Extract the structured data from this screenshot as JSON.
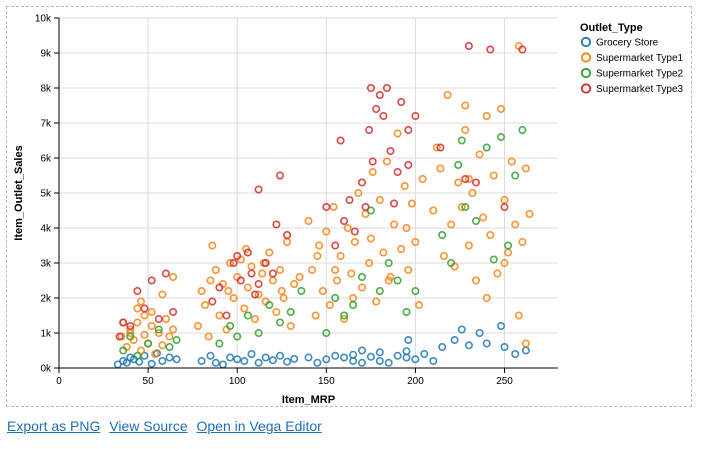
{
  "chart_data": {
    "type": "scatter",
    "xlabel": "Item_MRP",
    "ylabel": "Item_Outlet_Sales",
    "xlim": [
      0,
      280
    ],
    "ylim": [
      0,
      10000
    ],
    "x_ticks": [
      0,
      50,
      100,
      150,
      200,
      250
    ],
    "x_tick_labels": [
      "0",
      "50",
      "100",
      "150",
      "200",
      "250"
    ],
    "y_ticks": [
      0,
      1000,
      2000,
      3000,
      4000,
      5000,
      6000,
      7000,
      8000,
      9000,
      10000
    ],
    "y_tick_labels": [
      "0k",
      "1k",
      "2k",
      "3k",
      "4k",
      "5k",
      "6k",
      "7k",
      "8k",
      "9k",
      "10k"
    ],
    "grid": true,
    "legend_title": "Outlet_Type",
    "legend_position": "right",
    "series": [
      {
        "name": "Grocery Store",
        "color": "#1f77b4",
        "points": [
          [
            33,
            100
          ],
          [
            36,
            200
          ],
          [
            38,
            150
          ],
          [
            40,
            300
          ],
          [
            42,
            250
          ],
          [
            45,
            180
          ],
          [
            48,
            350
          ],
          [
            52,
            120
          ],
          [
            55,
            420
          ],
          [
            58,
            200
          ],
          [
            62,
            300
          ],
          [
            66,
            250
          ],
          [
            80,
            200
          ],
          [
            85,
            350
          ],
          [
            88,
            150
          ],
          [
            92,
            100
          ],
          [
            96,
            300
          ],
          [
            100,
            250
          ],
          [
            104,
            200
          ],
          [
            108,
            400
          ],
          [
            112,
            150
          ],
          [
            116,
            300
          ],
          [
            120,
            220
          ],
          [
            124,
            350
          ],
          [
            128,
            180
          ],
          [
            132,
            260
          ],
          [
            140,
            300
          ],
          [
            145,
            150
          ],
          [
            150,
            250
          ],
          [
            155,
            350
          ],
          [
            160,
            300
          ],
          [
            165,
            200
          ],
          [
            170,
            150
          ],
          [
            175,
            320
          ],
          [
            180,
            200
          ],
          [
            185,
            150
          ],
          [
            190,
            350
          ],
          [
            195,
            300
          ],
          [
            200,
            250
          ],
          [
            205,
            400
          ],
          [
            170,
            500
          ],
          [
            180,
            450
          ],
          [
            165,
            380
          ],
          [
            195,
            480
          ],
          [
            210,
            200
          ],
          [
            215,
            600
          ],
          [
            222,
            800
          ],
          [
            230,
            650
          ],
          [
            240,
            700
          ],
          [
            250,
            600
          ],
          [
            256,
            400
          ],
          [
            262,
            500
          ],
          [
            226,
            1100
          ],
          [
            236,
            1000
          ],
          [
            248,
            1200
          ],
          [
            196,
            800
          ]
        ]
      },
      {
        "name": "Supermarket Type1",
        "color": "#ff7f0e",
        "points": [
          [
            35,
            900
          ],
          [
            38,
            600
          ],
          [
            40,
            1100
          ],
          [
            42,
            800
          ],
          [
            44,
            1300
          ],
          [
            46,
            500
          ],
          [
            48,
            950
          ],
          [
            50,
            700
          ],
          [
            52,
            1200
          ],
          [
            54,
            400
          ],
          [
            56,
            1000
          ],
          [
            58,
            650
          ],
          [
            60,
            1400
          ],
          [
            62,
            900
          ],
          [
            64,
            1100
          ],
          [
            36,
            1300
          ],
          [
            44,
            1700
          ],
          [
            52,
            1600
          ],
          [
            46,
            1900
          ],
          [
            58,
            2100
          ],
          [
            64,
            2600
          ],
          [
            40,
            1000
          ],
          [
            48,
            1500
          ],
          [
            78,
            1200
          ],
          [
            80,
            2200
          ],
          [
            82,
            1800
          ],
          [
            84,
            900
          ],
          [
            86,
            3500
          ],
          [
            88,
            2800
          ],
          [
            90,
            1500
          ],
          [
            92,
            2400
          ],
          [
            94,
            1100
          ],
          [
            96,
            3000
          ],
          [
            98,
            2000
          ],
          [
            100,
            2600
          ],
          [
            102,
            3100
          ],
          [
            104,
            1700
          ],
          [
            106,
            2300
          ],
          [
            108,
            2900
          ],
          [
            110,
            1400
          ],
          [
            112,
            2100
          ],
          [
            114,
            2700
          ],
          [
            116,
            1900
          ],
          [
            118,
            3300
          ],
          [
            120,
            2500
          ],
          [
            122,
            1600
          ],
          [
            124,
            2800
          ],
          [
            126,
            2000
          ],
          [
            128,
            3600
          ],
          [
            130,
            1200
          ],
          [
            132,
            2400
          ],
          [
            85,
            2500
          ],
          [
            95,
            2200
          ],
          [
            105,
            3400
          ],
          [
            115,
            3000
          ],
          [
            125,
            2200
          ],
          [
            135,
            2600
          ],
          [
            140,
            4200
          ],
          [
            142,
            2800
          ],
          [
            144,
            1500
          ],
          [
            146,
            3500
          ],
          [
            148,
            2200
          ],
          [
            150,
            3900
          ],
          [
            152,
            1800
          ],
          [
            154,
            4600
          ],
          [
            156,
            2500
          ],
          [
            158,
            3200
          ],
          [
            160,
            1400
          ],
          [
            162,
            4000
          ],
          [
            164,
            2700
          ],
          [
            166,
            3600
          ],
          [
            168,
            5000
          ],
          [
            170,
            2300
          ],
          [
            172,
            4400
          ],
          [
            174,
            3000
          ],
          [
            176,
            5600
          ],
          [
            178,
            1900
          ],
          [
            180,
            4800
          ],
          [
            182,
            3300
          ],
          [
            184,
            5900
          ],
          [
            186,
            2600
          ],
          [
            188,
            4100
          ],
          [
            190,
            6700
          ],
          [
            192,
            3400
          ],
          [
            194,
            5200
          ],
          [
            196,
            2800
          ],
          [
            198,
            4700
          ],
          [
            200,
            3600
          ],
          [
            202,
            1800
          ],
          [
            204,
            5400
          ],
          [
            145,
            3200
          ],
          [
            155,
            2800
          ],
          [
            165,
            2000
          ],
          [
            175,
            3700
          ],
          [
            185,
            2500
          ],
          [
            195,
            4000
          ],
          [
            210,
            4500
          ],
          [
            212,
            6300
          ],
          [
            214,
            5700
          ],
          [
            216,
            3200
          ],
          [
            218,
            7800
          ],
          [
            220,
            4100
          ],
          [
            222,
            2900
          ],
          [
            224,
            5300
          ],
          [
            226,
            4600
          ],
          [
            228,
            6800
          ],
          [
            230,
            3500
          ],
          [
            232,
            5000
          ],
          [
            234,
            2500
          ],
          [
            236,
            6100
          ],
          [
            238,
            4300
          ],
          [
            240,
            7200
          ],
          [
            242,
            3800
          ],
          [
            244,
            5500
          ],
          [
            246,
            2700
          ],
          [
            248,
            7400
          ],
          [
            250,
            4800
          ],
          [
            252,
            3300
          ],
          [
            254,
            5900
          ],
          [
            256,
            4100
          ],
          [
            258,
            9200
          ],
          [
            260,
            3600
          ],
          [
            262,
            5700
          ],
          [
            264,
            4400
          ],
          [
            258,
            1500
          ],
          [
            262,
            700
          ],
          [
            228,
            7500
          ],
          [
            230,
            5400
          ],
          [
            240,
            2000
          ],
          [
            250,
            3000
          ]
        ]
      },
      {
        "name": "Supermarket Type2",
        "color": "#2ca02c",
        "points": [
          [
            36,
            500
          ],
          [
            40,
            900
          ],
          [
            44,
            350
          ],
          [
            50,
            700
          ],
          [
            56,
            1100
          ],
          [
            62,
            600
          ],
          [
            66,
            800
          ],
          [
            90,
            700
          ],
          [
            96,
            1200
          ],
          [
            100,
            900
          ],
          [
            106,
            1500
          ],
          [
            112,
            1000
          ],
          [
            118,
            1800
          ],
          [
            124,
            1300
          ],
          [
            130,
            1600
          ],
          [
            136,
            2200
          ],
          [
            150,
            1000
          ],
          [
            155,
            2000
          ],
          [
            160,
            1500
          ],
          [
            165,
            1800
          ],
          [
            170,
            2600
          ],
          [
            175,
            4500
          ],
          [
            180,
            2200
          ],
          [
            185,
            3000
          ],
          [
            190,
            2500
          ],
          [
            195,
            1600
          ],
          [
            200,
            2200
          ],
          [
            215,
            3800
          ],
          [
            220,
            3000
          ],
          [
            224,
            5800
          ],
          [
            228,
            4600
          ],
          [
            234,
            4200
          ],
          [
            240,
            6300
          ],
          [
            244,
            3100
          ],
          [
            248,
            6600
          ],
          [
            252,
            3500
          ],
          [
            256,
            5500
          ],
          [
            260,
            6800
          ],
          [
            226,
            6500
          ]
        ]
      },
      {
        "name": "Supermarket Type3",
        "color": "#d62728",
        "points": [
          [
            34,
            900
          ],
          [
            36,
            1300
          ],
          [
            40,
            1200
          ],
          [
            44,
            2200
          ],
          [
            48,
            1700
          ],
          [
            52,
            2500
          ],
          [
            56,
            1400
          ],
          [
            60,
            2700
          ],
          [
            64,
            1600
          ],
          [
            86,
            1900
          ],
          [
            90,
            2300
          ],
          [
            94,
            1500
          ],
          [
            98,
            3000
          ],
          [
            102,
            2500
          ],
          [
            106,
            3300
          ],
          [
            110,
            2100
          ],
          [
            112,
            5100
          ],
          [
            116,
            3000
          ],
          [
            120,
            2700
          ],
          [
            122,
            4100
          ],
          [
            124,
            5500
          ],
          [
            128,
            3800
          ],
          [
            100,
            3200
          ],
          [
            108,
            2700
          ],
          [
            112,
            2400
          ],
          [
            150,
            4600
          ],
          [
            155,
            3500
          ],
          [
            158,
            6500
          ],
          [
            160,
            4200
          ],
          [
            163,
            4800
          ],
          [
            166,
            3900
          ],
          [
            170,
            5300
          ],
          [
            172,
            4600
          ],
          [
            174,
            6800
          ],
          [
            176,
            5900
          ],
          [
            178,
            7400
          ],
          [
            180,
            7800
          ],
          [
            182,
            7200
          ],
          [
            184,
            8000
          ],
          [
            186,
            6200
          ],
          [
            188,
            4700
          ],
          [
            190,
            5600
          ],
          [
            192,
            7600
          ],
          [
            196,
            5800
          ],
          [
            200,
            7200
          ],
          [
            196,
            6800
          ],
          [
            175,
            8000
          ],
          [
            230,
            9200
          ],
          [
            242,
            9100
          ],
          [
            260,
            9100
          ],
          [
            234,
            5300
          ],
          [
            228,
            5400
          ],
          [
            250,
            4600
          ],
          [
            214,
            6300
          ]
        ]
      }
    ]
  },
  "links": {
    "export_png": "Export as PNG",
    "view_source": "View Source",
    "open_vega": "Open in Vega Editor"
  }
}
